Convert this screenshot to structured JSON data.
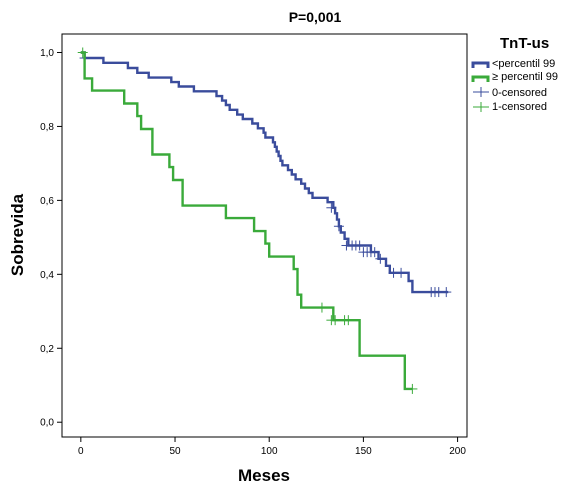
{
  "chart_data": {
    "type": "line",
    "subtype": "kaplan-meier",
    "title": "P=0,001",
    "xlabel": "Meses",
    "ylabel": "Sobrevida",
    "xlim": [
      -10,
      205
    ],
    "ylim": [
      -0.04,
      1.05
    ],
    "xticks": [
      0,
      50,
      100,
      150,
      200
    ],
    "yticks": [
      0.0,
      0.2,
      0.4,
      0.6,
      0.8,
      1.0
    ],
    "ytick_labels": [
      "0,0",
      "0,2",
      "0,4",
      "0,6",
      "0,8",
      "1,0"
    ],
    "grid": false,
    "legend": {
      "title": "TnT-us",
      "position": "right",
      "entries": [
        "<percentil 99",
        "≥ percentil 99",
        "0-censored",
        "1-censored"
      ]
    },
    "colors": {
      "series_0": "#3a4c9c",
      "series_1": "#3aaa3a"
    },
    "series": [
      {
        "name": "<percentil 99",
        "color": "#3a4c9c",
        "steps": [
          [
            0,
            1.0
          ],
          [
            2,
            0.985
          ],
          [
            12,
            0.972
          ],
          [
            25,
            0.958
          ],
          [
            30,
            0.945
          ],
          [
            36,
            0.932
          ],
          [
            48,
            0.92
          ],
          [
            52,
            0.908
          ],
          [
            60,
            0.895
          ],
          [
            72,
            0.882
          ],
          [
            75,
            0.87
          ],
          [
            77,
            0.858
          ],
          [
            79,
            0.845
          ],
          [
            83,
            0.832
          ],
          [
            86,
            0.82
          ],
          [
            91,
            0.808
          ],
          [
            94,
            0.795
          ],
          [
            97,
            0.783
          ],
          [
            98,
            0.77
          ],
          [
            102,
            0.757
          ],
          [
            103,
            0.745
          ],
          [
            104,
            0.732
          ],
          [
            105,
            0.72
          ],
          [
            106,
            0.707
          ],
          [
            107,
            0.695
          ],
          [
            110,
            0.682
          ],
          [
            112,
            0.67
          ],
          [
            114,
            0.657
          ],
          [
            117,
            0.645
          ],
          [
            119,
            0.632
          ],
          [
            121,
            0.62
          ],
          [
            123,
            0.607
          ],
          [
            131,
            0.595
          ],
          [
            134,
            0.58
          ],
          [
            135,
            0.565
          ],
          [
            136,
            0.548
          ],
          [
            137,
            0.53
          ],
          [
            138,
            0.513
          ],
          [
            140,
            0.496
          ],
          [
            142,
            0.478
          ],
          [
            154,
            0.46
          ],
          [
            158,
            0.442
          ],
          [
            162,
            0.423
          ],
          [
            164,
            0.404
          ],
          [
            174,
            0.382
          ],
          [
            176,
            0.352
          ],
          [
            195,
            0.352
          ]
        ],
        "censored": [
          [
            2,
            0.985
          ],
          [
            133,
            0.58
          ],
          [
            137,
            0.53
          ],
          [
            141,
            0.478
          ],
          [
            144,
            0.478
          ],
          [
            146,
            0.478
          ],
          [
            148,
            0.478
          ],
          [
            150,
            0.46
          ],
          [
            152,
            0.46
          ],
          [
            154,
            0.46
          ],
          [
            156,
            0.46
          ],
          [
            159,
            0.442
          ],
          [
            166,
            0.404
          ],
          [
            170,
            0.404
          ],
          [
            186,
            0.352
          ],
          [
            188,
            0.352
          ],
          [
            190,
            0.352
          ],
          [
            194,
            0.352
          ]
        ]
      },
      {
        "name": "≥ percentil 99",
        "color": "#3aaa3a",
        "steps": [
          [
            0,
            1.0
          ],
          [
            2,
            0.93
          ],
          [
            6,
            0.897
          ],
          [
            23,
            0.862
          ],
          [
            30,
            0.828
          ],
          [
            32,
            0.793
          ],
          [
            38,
            0.724
          ],
          [
            47,
            0.69
          ],
          [
            49,
            0.655
          ],
          [
            54,
            0.586
          ],
          [
            77,
            0.552
          ],
          [
            92,
            0.517
          ],
          [
            98,
            0.483
          ],
          [
            100,
            0.448
          ],
          [
            113,
            0.414
          ],
          [
            115,
            0.345
          ],
          [
            117,
            0.31
          ],
          [
            134,
            0.276
          ],
          [
            148,
            0.18
          ],
          [
            172,
            0.09
          ],
          [
            176,
            0.09
          ]
        ],
        "censored": [
          [
            1,
            1.0
          ],
          [
            128,
            0.31
          ],
          [
            133,
            0.276
          ],
          [
            135,
            0.276
          ],
          [
            140,
            0.276
          ],
          [
            142,
            0.276
          ],
          [
            176,
            0.09
          ]
        ]
      }
    ]
  }
}
